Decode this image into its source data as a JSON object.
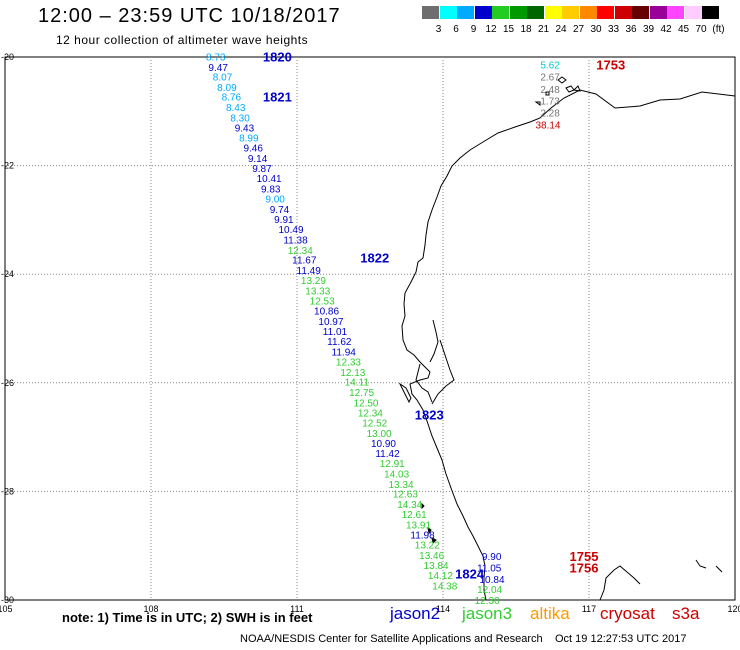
{
  "header": {
    "title": "12:00 – 23:59 UTC 10/18/2017",
    "subtitle": "12 hour collection of altimeter wave heights"
  },
  "legend": {
    "labels": [
      "3",
      "6",
      "9",
      "12",
      "15",
      "18",
      "21",
      "24",
      "27",
      "30",
      "33",
      "36",
      "39",
      "42",
      "45",
      "70",
      "(ft)"
    ],
    "colors": [
      "#6e6e6e",
      "#00ffff",
      "#00aaff",
      "#0000cc",
      "#22cc22",
      "#009900",
      "#006600",
      "#ffff00",
      "#ffcc00",
      "#ff8800",
      "#ff0000",
      "#cc0000",
      "#660000",
      "#990099",
      "#ff44ff",
      "#ffccff",
      "#000000"
    ]
  },
  "axes": {
    "x_ticks": [
      "105",
      "108",
      "111",
      "114",
      "117",
      "120"
    ],
    "y_ticks": [
      "-20",
      "-22",
      "-24",
      "-26",
      "-28",
      "-30"
    ]
  },
  "colors": {
    "jason2": "#0000cc",
    "jason3": "#33cc33",
    "altika": "#ff9900",
    "cryosat": "#cc0000",
    "s3a": "#cc0000",
    "lightblue": "#00aaff",
    "cyan": "#00cccc",
    "gray": "#777777"
  },
  "time_labels": [
    {
      "text": "1820",
      "lon": 110.3,
      "lat": -19.99,
      "color": "jason2"
    },
    {
      "text": "1821",
      "lon": 110.3,
      "lat": -20.73,
      "color": "jason2"
    },
    {
      "text": "1822",
      "lon": 112.3,
      "lat": -23.69,
      "color": "jason2"
    },
    {
      "text": "1823",
      "lon": 113.42,
      "lat": -26.58,
      "color": "jason2"
    },
    {
      "text": "1824",
      "lon": 114.25,
      "lat": -29.51,
      "color": "jason2"
    },
    {
      "text": "1753",
      "lon": 117.15,
      "lat": -20.14,
      "color": "cryosat"
    },
    {
      "text": "1755",
      "lon": 116.6,
      "lat": -29.19,
      "color": "cryosat"
    },
    {
      "text": "1756",
      "lon": 116.6,
      "lat": -29.4,
      "color": "cryosat"
    }
  ],
  "wave_heights": [
    {
      "text": "8.73",
      "lon": 109.13,
      "lat": -19.99,
      "color": "lightblue"
    },
    {
      "text": "9.47",
      "lon": 109.18,
      "lat": -20.18,
      "color": "jason2"
    },
    {
      "text": "8.07",
      "lon": 109.27,
      "lat": -20.36,
      "color": "lightblue"
    },
    {
      "text": "8.09",
      "lon": 109.36,
      "lat": -20.55,
      "color": "lightblue"
    },
    {
      "text": "8.76",
      "lon": 109.45,
      "lat": -20.73,
      "color": "lightblue"
    },
    {
      "text": "8.43",
      "lon": 109.54,
      "lat": -20.92,
      "color": "lightblue"
    },
    {
      "text": "8.30",
      "lon": 109.63,
      "lat": -21.11,
      "color": "lightblue"
    },
    {
      "text": "9.43",
      "lon": 109.72,
      "lat": -21.3,
      "color": "jason2"
    },
    {
      "text": "8.99",
      "lon": 109.81,
      "lat": -21.48,
      "color": "lightblue"
    },
    {
      "text": "9.46",
      "lon": 109.9,
      "lat": -21.67,
      "color": "jason2"
    },
    {
      "text": "9.14",
      "lon": 109.99,
      "lat": -21.86,
      "color": "jason2"
    },
    {
      "text": "9.87",
      "lon": 110.08,
      "lat": -22.04,
      "color": "jason2"
    },
    {
      "text": "10.41",
      "lon": 110.17,
      "lat": -22.23,
      "color": "jason2"
    },
    {
      "text": "9.83",
      "lon": 110.26,
      "lat": -22.42,
      "color": "jason2"
    },
    {
      "text": "9.00",
      "lon": 110.35,
      "lat": -22.61,
      "color": "lightblue"
    },
    {
      "text": "9.74",
      "lon": 110.44,
      "lat": -22.8,
      "color": "jason2"
    },
    {
      "text": "9.91",
      "lon": 110.53,
      "lat": -22.98,
      "color": "jason2"
    },
    {
      "text": "10.49",
      "lon": 110.62,
      "lat": -23.17,
      "color": "jason2"
    },
    {
      "text": "11.38",
      "lon": 110.72,
      "lat": -23.36,
      "color": "jason2"
    },
    {
      "text": "12.34",
      "lon": 110.81,
      "lat": -23.55,
      "color": "jason3"
    },
    {
      "text": "11.67",
      "lon": 110.9,
      "lat": -23.73,
      "color": "jason2"
    },
    {
      "text": "11.49",
      "lon": 110.99,
      "lat": -23.92,
      "color": "jason2"
    },
    {
      "text": "13.29",
      "lon": 111.08,
      "lat": -24.11,
      "color": "jason3"
    },
    {
      "text": "13.33",
      "lon": 111.17,
      "lat": -24.3,
      "color": "jason3"
    },
    {
      "text": "12.53",
      "lon": 111.26,
      "lat": -24.48,
      "color": "jason3"
    },
    {
      "text": "10.86",
      "lon": 111.35,
      "lat": -24.67,
      "color": "jason2"
    },
    {
      "text": "10.97",
      "lon": 111.44,
      "lat": -24.86,
      "color": "jason2"
    },
    {
      "text": "11.01",
      "lon": 111.53,
      "lat": -25.05,
      "color": "jason2"
    },
    {
      "text": "11.62",
      "lon": 111.62,
      "lat": -25.23,
      "color": "jason2"
    },
    {
      "text": "11.94",
      "lon": 111.71,
      "lat": -25.42,
      "color": "jason2"
    },
    {
      "text": "12.33",
      "lon": 111.8,
      "lat": -25.61,
      "color": "jason3"
    },
    {
      "text": "12.13",
      "lon": 111.89,
      "lat": -25.8,
      "color": "jason3"
    },
    {
      "text": "14.11",
      "lon": 111.98,
      "lat": -25.98,
      "color": "jason3"
    },
    {
      "text": "12.75",
      "lon": 112.07,
      "lat": -26.17,
      "color": "jason3"
    },
    {
      "text": "12.50",
      "lon": 112.16,
      "lat": -26.36,
      "color": "jason3"
    },
    {
      "text": "12.34",
      "lon": 112.25,
      "lat": -26.55,
      "color": "jason3"
    },
    {
      "text": "12.52",
      "lon": 112.34,
      "lat": -26.73,
      "color": "jason3"
    },
    {
      "text": "13.00",
      "lon": 112.43,
      "lat": -26.92,
      "color": "jason3"
    },
    {
      "text": "10.90",
      "lon": 112.52,
      "lat": -27.11,
      "color": "jason2"
    },
    {
      "text": "11.42",
      "lon": 112.61,
      "lat": -27.29,
      "color": "jason2"
    },
    {
      "text": "12.91",
      "lon": 112.7,
      "lat": -27.48,
      "color": "jason3"
    },
    {
      "text": "14.03",
      "lon": 112.79,
      "lat": -27.67,
      "color": "jason3"
    },
    {
      "text": "13.34",
      "lon": 112.88,
      "lat": -27.86,
      "color": "jason3"
    },
    {
      "text": "12.63",
      "lon": 112.97,
      "lat": -28.04,
      "color": "jason3"
    },
    {
      "text": "14.34",
      "lon": 113.06,
      "lat": -28.23,
      "color": "jason3"
    },
    {
      "text": "12.61",
      "lon": 113.15,
      "lat": -28.42,
      "color": "jason3"
    },
    {
      "text": "13.91",
      "lon": 113.24,
      "lat": -28.61,
      "color": "jason3"
    },
    {
      "text": "11.98",
      "lon": 113.33,
      "lat": -28.79,
      "color": "jason2"
    },
    {
      "text": "13.22",
      "lon": 113.42,
      "lat": -28.98,
      "color": "jason3"
    },
    {
      "text": "13.46",
      "lon": 113.51,
      "lat": -29.17,
      "color": "jason3"
    },
    {
      "text": "13.84",
      "lon": 113.6,
      "lat": -29.36,
      "color": "jason3"
    },
    {
      "text": "14.12",
      "lon": 113.69,
      "lat": -29.54,
      "color": "jason3"
    },
    {
      "text": "14.38",
      "lon": 113.78,
      "lat": -29.73,
      "color": "jason3"
    },
    {
      "text": "5.62",
      "lon": 116.0,
      "lat": -20.14,
      "color": "cyan"
    },
    {
      "text": "2.67",
      "lon": 116.0,
      "lat": -20.36,
      "color": "gray"
    },
    {
      "text": "2.48",
      "lon": 116.0,
      "lat": -20.59,
      "color": "gray"
    },
    {
      "text": "1.73",
      "lon": 116.0,
      "lat": -20.8,
      "color": "gray"
    },
    {
      "text": "2.28",
      "lon": 116.0,
      "lat": -21.02,
      "color": "gray"
    },
    {
      "text": "38.14",
      "lon": 115.9,
      "lat": -21.24,
      "color": "cryosat"
    },
    {
      "text": "9.90",
      "lon": 114.8,
      "lat": -29.19,
      "color": "jason2"
    },
    {
      "text": "11.05",
      "lon": 114.7,
      "lat": -29.4,
      "color": "jason2"
    },
    {
      "text": "10.84",
      "lon": 114.75,
      "lat": -29.61,
      "color": "jason2"
    },
    {
      "text": "12.04",
      "lon": 114.7,
      "lat": -29.8,
      "color": "jason3"
    },
    {
      "text": "12.30",
      "lon": 114.65,
      "lat": -30.0,
      "color": "jason3"
    }
  ],
  "footer": {
    "note": "note:  1) Time is in UTC;  2) SWH is in feet",
    "satellites": [
      {
        "label": "jason2",
        "color": "#0000cc"
      },
      {
        "label": "jason3",
        "color": "#33cc33"
      },
      {
        "label": "altika",
        "color": "#ff9900"
      },
      {
        "label": "cryosat",
        "color": "#cc0000"
      },
      {
        "label": "s3a",
        "color": "#cc0000"
      }
    ],
    "credit": "NOAA/NESDIS Center for Satellite Applications and Research",
    "timestamp": "Oct 19 12:27:53 UTC 2017"
  }
}
